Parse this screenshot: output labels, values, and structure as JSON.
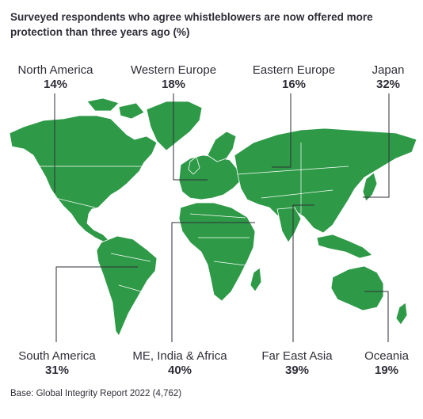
{
  "title": "Surveyed respondents who agree whistleblowers are now offered more protection than three years ago (%)",
  "regions": {
    "north_america": {
      "name": "North America",
      "value": "14%"
    },
    "western_europe": {
      "name": "Western Europe",
      "value": "18%"
    },
    "eastern_europe": {
      "name": "Eastern Europe",
      "value": "16%"
    },
    "japan": {
      "name": "Japan",
      "value": "32%"
    },
    "south_america": {
      "name": "South America",
      "value": "31%"
    },
    "me_india_africa": {
      "name": "ME, India & Africa",
      "value": "40%"
    },
    "far_east_asia": {
      "name": "Far East Asia",
      "value": "39%"
    },
    "oceania": {
      "name": "Oceania",
      "value": "19%"
    }
  },
  "base": "Base: Global Integrity Report 2022 (4,762)",
  "colors": {
    "land": "#2e9a47",
    "border": "#ffffff",
    "leader": "#2e2e38",
    "text": "#2e2e38"
  }
}
